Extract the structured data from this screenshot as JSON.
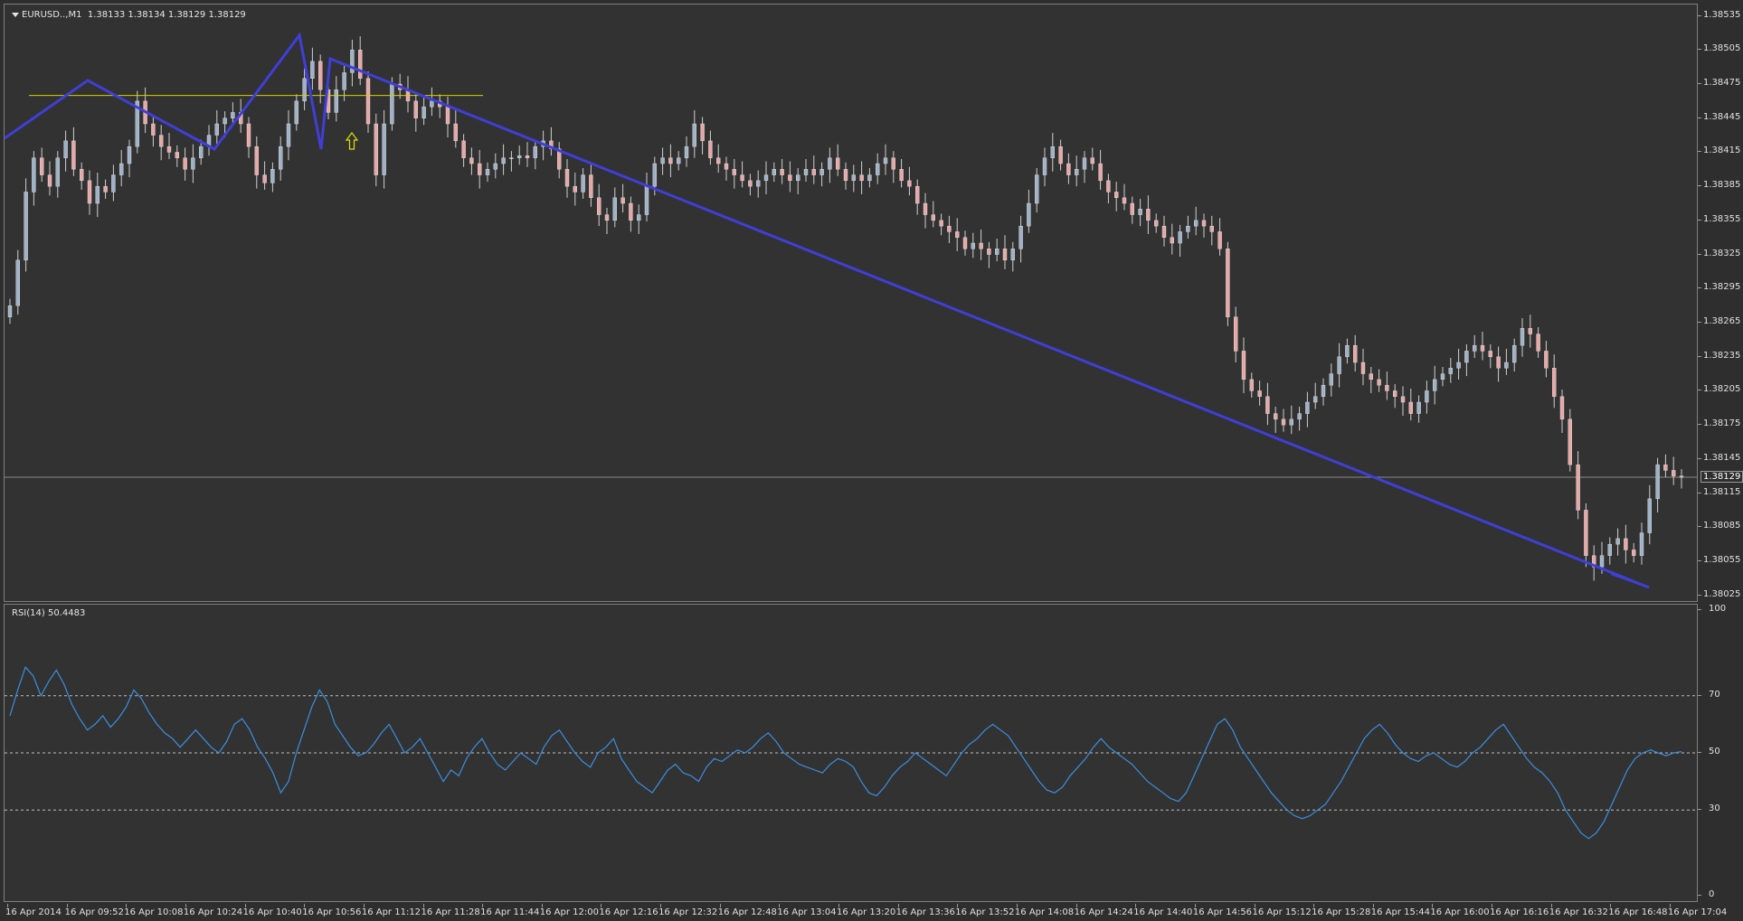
{
  "chart": {
    "symbol": "EURUSD..,M1",
    "ohlc_text": "1.38133 1.38134 1.38129 1.38129",
    "current_price": "1.38129",
    "colors": {
      "background": "#323232",
      "bull_candle": "#9fb2c8",
      "bear_candle": "#e8a8a8",
      "wick": "#cfcfcf",
      "trendline": "#3f3fd8",
      "horizontal_line": "#d8d000",
      "arrow": "#e0e000",
      "bid_line": "#8a8a8a"
    },
    "price_axis_labels": [
      "1.38535",
      "1.38505",
      "1.38475",
      "1.38445",
      "1.38415",
      "1.38385",
      "1.38355",
      "1.38325",
      "1.38295",
      "1.38265",
      "1.38235",
      "1.38205",
      "1.38175",
      "1.38145",
      "1.38115",
      "1.38085",
      "1.38055",
      "1.38025"
    ],
    "price_range": [
      1.3802,
      1.38545
    ],
    "close_series": [
      1.3828,
      1.3832,
      1.3838,
      1.3841,
      1.38395,
      1.38385,
      1.3841,
      1.38425,
      1.384,
      1.3839,
      1.3837,
      1.38385,
      1.3838,
      1.38395,
      1.38405,
      1.3842,
      1.3846,
      1.3844,
      1.3843,
      1.3842,
      1.38415,
      1.3841,
      1.384,
      1.3841,
      1.3842,
      1.3843,
      1.3844,
      1.38445,
      1.3845,
      1.3844,
      1.3842,
      1.38395,
      1.38388,
      1.384,
      1.3842,
      1.3844,
      1.3846,
      1.3848,
      1.38495,
      1.3847,
      1.3845,
      1.3847,
      1.38485,
      1.38505,
      1.3848,
      1.3844,
      1.38395,
      1.3844,
      1.38475,
      1.3847,
      1.3846,
      1.38445,
      1.38455,
      1.3846,
      1.38455,
      1.3844,
      1.38425,
      1.3841,
      1.38405,
      1.38395,
      1.384,
      1.38405,
      1.3841,
      1.3841,
      1.38412,
      1.3841,
      1.3842,
      1.38425,
      1.38418,
      1.384,
      1.38385,
      1.3838,
      1.38395,
      1.38375,
      1.3836,
      1.38355,
      1.38375,
      1.3837,
      1.38355,
      1.3836,
      1.38385,
      1.38405,
      1.3841,
      1.38405,
      1.3841,
      1.3842,
      1.3844,
      1.38425,
      1.3841,
      1.38405,
      1.384,
      1.38395,
      1.3839,
      1.38385,
      1.3839,
      1.38395,
      1.384,
      1.38395,
      1.3839,
      1.38395,
      1.384,
      1.38395,
      1.384,
      1.3841,
      1.384,
      1.3839,
      1.38395,
      1.3839,
      1.38395,
      1.38405,
      1.3841,
      1.384,
      1.3839,
      1.38385,
      1.3837,
      1.3836,
      1.38355,
      1.3835,
      1.38345,
      1.3834,
      1.3833,
      1.38335,
      1.3833,
      1.38325,
      1.3833,
      1.3832,
      1.3833,
      1.3835,
      1.3837,
      1.38395,
      1.3841,
      1.3842,
      1.38405,
      1.38395,
      1.384,
      1.3841,
      1.38405,
      1.3839,
      1.3838,
      1.38375,
      1.3837,
      1.3836,
      1.38365,
      1.38355,
      1.3835,
      1.3834,
      1.38335,
      1.38345,
      1.3835,
      1.38355,
      1.3835,
      1.38345,
      1.3833,
      1.3827,
      1.3824,
      1.38215,
      1.38205,
      1.382,
      1.38185,
      1.3818,
      1.38175,
      1.3818,
      1.38185,
      1.38195,
      1.382,
      1.3821,
      1.3822,
      1.38235,
      1.38245,
      1.3823,
      1.3822,
      1.38215,
      1.3821,
      1.38205,
      1.382,
      1.38195,
      1.38185,
      1.38195,
      1.38205,
      1.38215,
      1.3822,
      1.38225,
      1.3823,
      1.3824,
      1.38245,
      1.3824,
      1.38235,
      1.38225,
      1.3823,
      1.38245,
      1.3826,
      1.38255,
      1.3824,
      1.38225,
      1.382,
      1.3818,
      1.3814,
      1.381,
      1.3806,
      1.3805,
      1.3806,
      1.3807,
      1.38075,
      1.38065,
      1.3806,
      1.3808,
      1.3811,
      1.3814,
      1.38135,
      1.3813,
      1.38129
    ],
    "yellow_line_price": 1.38465,
    "rsi": {
      "title": "RSI(14) 50.4483",
      "axis_labels": [
        "100",
        "70",
        "50",
        "30",
        "0"
      ],
      "levels": [
        70,
        50,
        30
      ],
      "color": "#3a8fe0",
      "values": [
        63,
        72,
        80,
        77,
        70,
        75,
        79,
        74,
        67,
        62,
        58,
        60,
        63,
        59,
        62,
        66,
        72,
        69,
        64,
        60,
        57,
        55,
        52,
        55,
        58,
        55,
        52,
        50,
        54,
        60,
        62,
        58,
        52,
        48,
        43,
        36,
        40,
        50,
        58,
        66,
        72,
        68,
        60,
        56,
        52,
        49,
        50,
        53,
        57,
        60,
        55,
        50,
        52,
        55,
        50,
        45,
        40,
        44,
        42,
        48,
        52,
        55,
        50,
        46,
        44,
        47,
        50,
        48,
        46,
        52,
        56,
        58,
        54,
        50,
        47,
        45,
        50,
        52,
        55,
        48,
        44,
        40,
        38,
        36,
        40,
        44,
        46,
        43,
        42,
        40,
        45,
        48,
        47,
        49,
        51,
        50,
        52,
        55,
        57,
        54,
        50,
        48,
        46,
        45,
        44,
        43,
        46,
        48,
        47,
        45,
        40,
        36,
        35,
        38,
        42,
        45,
        47,
        50,
        48,
        46,
        44,
        42,
        46,
        50,
        53,
        55,
        58,
        60,
        58,
        56,
        52,
        48,
        44,
        40,
        37,
        36,
        38,
        42,
        45,
        48,
        52,
        55,
        52,
        50,
        48,
        46,
        43,
        40,
        38,
        36,
        34,
        33,
        36,
        42,
        48,
        54,
        60,
        62,
        58,
        52,
        48,
        44,
        40,
        36,
        33,
        30,
        28,
        27,
        28,
        30,
        32,
        36,
        40,
        45,
        50,
        55,
        58,
        60,
        57,
        53,
        50,
        48,
        47,
        49,
        50,
        48,
        46,
        45,
        47,
        50,
        52,
        55,
        58,
        60,
        56,
        52,
        48,
        45,
        43,
        40,
        36,
        30,
        26,
        22,
        20,
        22,
        26,
        32,
        38,
        44,
        48,
        50,
        51,
        50,
        49,
        50,
        50.4483
      ]
    },
    "time_labels": [
      "16 Apr 2014",
      "16 Apr 09:52",
      "16 Apr 10:08",
      "16 Apr 10:24",
      "16 Apr 10:40",
      "16 Apr 10:56",
      "16 Apr 11:12",
      "16 Apr 11:28",
      "16 Apr 11:44",
      "16 Apr 12:00",
      "16 Apr 12:16",
      "16 Apr 12:32",
      "16 Apr 12:48",
      "16 Apr 13:04",
      "16 Apr 13:20",
      "16 Apr 13:36",
      "16 Apr 13:52",
      "16 Apr 14:08",
      "16 Apr 14:24",
      "16 Apr 14:40",
      "16 Apr 14:56",
      "16 Apr 15:12",
      "16 Apr 15:28",
      "16 Apr 15:44",
      "16 Apr 16:00",
      "16 Apr 16:16",
      "16 Apr 16:32",
      "16 Apr 16:48",
      "16 Apr 17:04"
    ]
  }
}
